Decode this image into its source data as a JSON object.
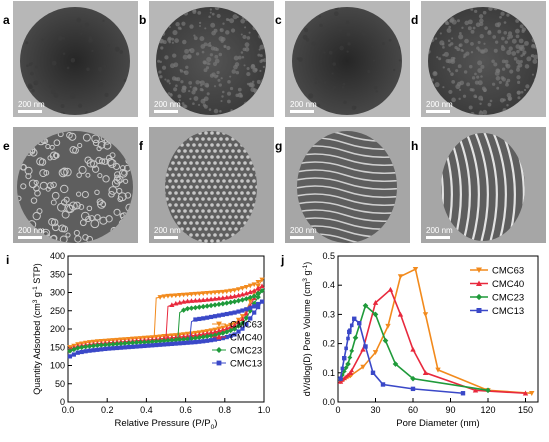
{
  "panels": {
    "tem": [
      {
        "letter": "a",
        "scale_label": "200 nm",
        "style": "dark"
      },
      {
        "letter": "b",
        "scale_label": "200 nm",
        "style": "speckle"
      },
      {
        "letter": "c",
        "scale_label": "200 nm",
        "style": "dark"
      },
      {
        "letter": "d",
        "scale_label": "200 nm",
        "style": "speckle"
      },
      {
        "letter": "e",
        "scale_label": "200 nm",
        "style": "pores"
      },
      {
        "letter": "f",
        "scale_label": "200 nm",
        "style": "lattice"
      },
      {
        "letter": "g",
        "scale_label": "200 nm",
        "style": "swirl"
      },
      {
        "letter": "h",
        "scale_label": "200 nm",
        "style": "stripes"
      }
    ]
  },
  "colors": {
    "CMC63": "#f28a1c",
    "CMC40": "#e8293d",
    "CMC23": "#1f9a3a",
    "CMC13": "#3a48c8"
  },
  "chart_data": [
    {
      "panel": "i",
      "type": "line",
      "xlabel": "Relative Pressure (P/P",
      "xlabel_sub": "0",
      "xlabel_end": ")",
      "ylabel": "Quantity Adsorbed (cm",
      "ylabel_sup": "3",
      "ylabel_mid": " g",
      "ylabel_sup2": "-1",
      "ylabel_end": " STP)",
      "xlim": [
        0.0,
        1.0
      ],
      "ylim": [
        0,
        400
      ],
      "xticks": [
        "0.0",
        "0.2",
        "0.4",
        "0.6",
        "0.8",
        "1.0"
      ],
      "yticks": [
        "0",
        "50",
        "100",
        "150",
        "200",
        "250",
        "300",
        "350",
        "400"
      ],
      "legend": "bottom-right",
      "series": [
        {
          "name": "CMC63",
          "marker": "triangle-down",
          "adsorption": [
            [
              0.01,
              150
            ],
            [
              0.05,
              158
            ],
            [
              0.1,
              163
            ],
            [
              0.15,
              166
            ],
            [
              0.2,
              168
            ],
            [
              0.25,
              170
            ],
            [
              0.3,
              172
            ],
            [
              0.35,
              174
            ],
            [
              0.4,
              176
            ],
            [
              0.45,
              178
            ],
            [
              0.5,
              181
            ],
            [
              0.55,
              183
            ],
            [
              0.6,
              186
            ],
            [
              0.65,
              189
            ],
            [
              0.7,
              193
            ],
            [
              0.75,
              198
            ],
            [
              0.8,
              205
            ],
            [
              0.85,
              215
            ],
            [
              0.9,
              240
            ],
            [
              0.95,
              300
            ],
            [
              0.99,
              335
            ]
          ],
          "desorption": [
            [
              0.99,
              335
            ],
            [
              0.95,
              322
            ],
            [
              0.9,
              313
            ],
            [
              0.85,
              306
            ],
            [
              0.8,
              302
            ],
            [
              0.7,
              298
            ],
            [
              0.6,
              294
            ],
            [
              0.5,
              290
            ],
            [
              0.45,
              285
            ],
            [
              0.44,
              180
            ]
          ]
        },
        {
          "name": "CMC40",
          "marker": "triangle-up",
          "adsorption": [
            [
              0.01,
              145
            ],
            [
              0.05,
              153
            ],
            [
              0.1,
              157
            ],
            [
              0.15,
              160
            ],
            [
              0.2,
              162
            ],
            [
              0.25,
              164
            ],
            [
              0.3,
              166
            ],
            [
              0.35,
              168
            ],
            [
              0.4,
              170
            ],
            [
              0.45,
              172
            ],
            [
              0.5,
              175
            ],
            [
              0.55,
              177
            ],
            [
              0.6,
              180
            ],
            [
              0.65,
              183
            ],
            [
              0.7,
              187
            ],
            [
              0.75,
              192
            ],
            [
              0.8,
              199
            ],
            [
              0.85,
              210
            ],
            [
              0.9,
              232
            ],
            [
              0.95,
              285
            ],
            [
              0.99,
              318
            ]
          ],
          "desorption": [
            [
              0.99,
              318
            ],
            [
              0.95,
              305
            ],
            [
              0.9,
              296
            ],
            [
              0.85,
              290
            ],
            [
              0.8,
              286
            ],
            [
              0.7,
              280
            ],
            [
              0.6,
              276
            ],
            [
              0.55,
              270
            ],
            [
              0.51,
              262
            ],
            [
              0.5,
              175
            ]
          ]
        },
        {
          "name": "CMC23",
          "marker": "diamond",
          "adsorption": [
            [
              0.01,
              140
            ],
            [
              0.05,
              148
            ],
            [
              0.1,
              152
            ],
            [
              0.15,
              155
            ],
            [
              0.2,
              157
            ],
            [
              0.25,
              159
            ],
            [
              0.3,
              161
            ],
            [
              0.35,
              163
            ],
            [
              0.4,
              164
            ],
            [
              0.45,
              166
            ],
            [
              0.5,
              168
            ],
            [
              0.55,
              170
            ],
            [
              0.6,
              172
            ],
            [
              0.65,
              175
            ],
            [
              0.7,
              179
            ],
            [
              0.75,
              183
            ],
            [
              0.8,
              190
            ],
            [
              0.85,
              200
            ],
            [
              0.9,
              220
            ],
            [
              0.95,
              270
            ],
            [
              0.99,
              305
            ]
          ],
          "desorption": [
            [
              0.99,
              305
            ],
            [
              0.95,
              290
            ],
            [
              0.9,
              281
            ],
            [
              0.85,
              275
            ],
            [
              0.8,
              270
            ],
            [
              0.7,
              262
            ],
            [
              0.6,
              255
            ],
            [
              0.57,
              245
            ],
            [
              0.56,
              170
            ]
          ]
        },
        {
          "name": "CMC13",
          "marker": "square",
          "adsorption": [
            [
              0.01,
              125
            ],
            [
              0.05,
              135
            ],
            [
              0.1,
              140
            ],
            [
              0.15,
              143
            ],
            [
              0.2,
              146
            ],
            [
              0.25,
              148
            ],
            [
              0.3,
              150
            ],
            [
              0.35,
              152
            ],
            [
              0.4,
              154
            ],
            [
              0.45,
              156
            ],
            [
              0.5,
              158
            ],
            [
              0.55,
              160
            ],
            [
              0.6,
              162
            ],
            [
              0.65,
              164
            ],
            [
              0.7,
              167
            ],
            [
              0.75,
              171
            ],
            [
              0.8,
              176
            ],
            [
              0.85,
              185
            ],
            [
              0.9,
              205
            ],
            [
              0.95,
              245
            ],
            [
              0.99,
              275
            ]
          ],
          "desorption": [
            [
              0.99,
              275
            ],
            [
              0.95,
              262
            ],
            [
              0.9,
              252
            ],
            [
              0.85,
              245
            ],
            [
              0.8,
              240
            ],
            [
              0.75,
              235
            ],
            [
              0.7,
              230
            ],
            [
              0.65,
              226
            ],
            [
              0.63,
              220
            ],
            [
              0.62,
              165
            ]
          ]
        }
      ]
    },
    {
      "panel": "j",
      "type": "line",
      "xlabel": "Pore Diameter (nm)",
      "ylabel": "dV/dlog(D) Pore Volume (cm",
      "ylabel_sup": "3",
      "ylabel_mid": " g",
      "ylabel_sup2": "-1",
      "ylabel_end": ")",
      "xlim": [
        0,
        160
      ],
      "ylim": [
        0.0,
        0.5
      ],
      "xticks": [
        "0",
        "30",
        "60",
        "90",
        "120",
        "150"
      ],
      "yticks": [
        "0.0",
        "0.1",
        "0.2",
        "0.3",
        "0.4",
        "0.5"
      ],
      "legend": "top-right",
      "series": [
        {
          "name": "CMC63",
          "marker": "triangle-down",
          "points": [
            [
              2,
              0.07
            ],
            [
              10,
              0.09
            ],
            [
              20,
              0.12
            ],
            [
              30,
              0.17
            ],
            [
              40,
              0.26
            ],
            [
              50,
              0.43
            ],
            [
              62,
              0.455
            ],
            [
              70,
              0.3
            ],
            [
              80,
              0.11
            ],
            [
              120,
              0.04
            ],
            [
              155,
              0.03
            ]
          ]
        },
        {
          "name": "CMC40",
          "marker": "triangle-up",
          "points": [
            [
              2,
              0.07
            ],
            [
              10,
              0.1
            ],
            [
              20,
              0.18
            ],
            [
              30,
              0.34
            ],
            [
              42,
              0.385
            ],
            [
              50,
              0.3
            ],
            [
              60,
              0.18
            ],
            [
              70,
              0.1
            ],
            [
              110,
              0.04
            ],
            [
              150,
              0.03
            ]
          ]
        },
        {
          "name": "CMC23",
          "marker": "diamond",
          "points": [
            [
              2,
              0.08
            ],
            [
              8,
              0.13
            ],
            [
              14,
              0.22
            ],
            [
              22,
              0.33
            ],
            [
              30,
              0.3
            ],
            [
              38,
              0.21
            ],
            [
              46,
              0.13
            ],
            [
              60,
              0.08
            ],
            [
              120,
              0.04
            ]
          ]
        },
        {
          "name": "CMC13",
          "marker": "square",
          "points": [
            [
              2,
              0.08
            ],
            [
              5,
              0.15
            ],
            [
              9,
              0.24
            ],
            [
              13,
              0.285
            ],
            [
              17,
              0.27
            ],
            [
              22,
              0.19
            ],
            [
              28,
              0.1
            ],
            [
              36,
              0.06
            ],
            [
              60,
              0.045
            ],
            [
              100,
              0.03
            ]
          ]
        }
      ]
    }
  ]
}
